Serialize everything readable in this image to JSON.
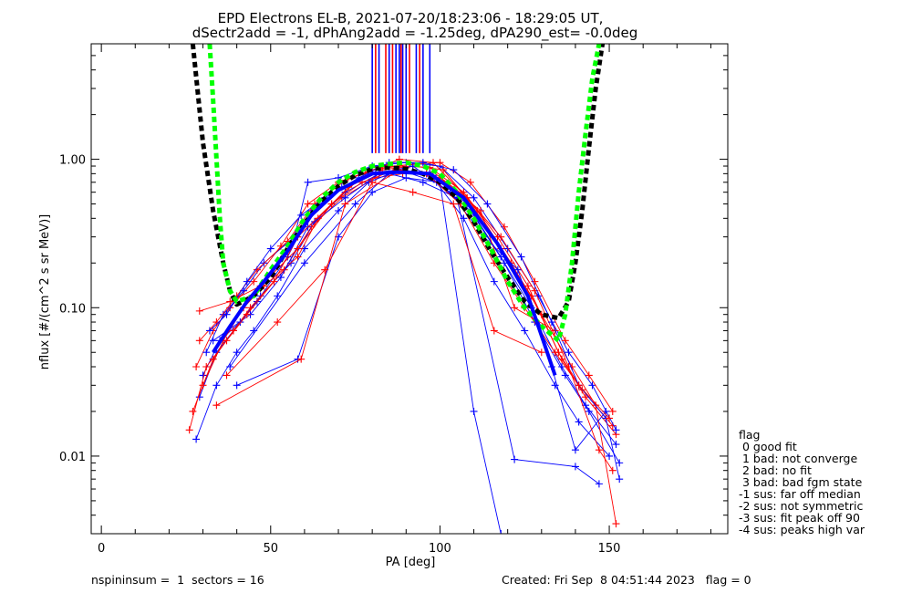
{
  "title_line1": "EPD Electrons EL-B, 2021-07-20/18:23:06 - 18:29:05 UT,",
  "title_line2": "dSectr2add = -1, dPhAng2add = -1.25deg, dPA290_est=  -0.0deg",
  "footer": {
    "left": "nspininsum =  1  sectors = 16",
    "right": "Created: Fri Sep  8 04:51:44 2023   flag = 0"
  },
  "legend": {
    "title": "flag",
    "items": [
      " 0 good fit",
      " 1 bad: not converge",
      " 2 bad: no fit",
      " 3 bad: bad fgm state",
      "-1 sus: far off median",
      "-2 sus: not symmetric",
      "-3 sus: fit peak off 90",
      "-4 sus: peaks high var"
    ]
  },
  "colors": {
    "blue": "#0000ff",
    "red": "#ff0000",
    "black": "#000000",
    "green": "#00ff00"
  },
  "chart_data": {
    "type": "line",
    "xlabel": "PA [deg]",
    "ylabel": "nflux [#/(cm^2 s sr MeV)]",
    "xlim": [
      -3,
      185
    ],
    "ylim": [
      0.003,
      6.0
    ],
    "yscale": "log",
    "xticks": [
      0,
      50,
      100,
      150
    ],
    "xtick_labels": [
      "0",
      "50",
      "100",
      "150"
    ],
    "yticks": [
      0.01,
      0.1,
      1.0
    ],
    "ytick_labels": [
      "0.01",
      "0.10",
      "1.00"
    ],
    "series": [
      {
        "color": "blue",
        "x": [
          29,
          34,
          39,
          46,
          55,
          62,
          71,
          81,
          89,
          98,
          108,
          118,
          127,
          136,
          143,
          152
        ],
        "y": [
          0.025,
          0.05,
          0.07,
          0.11,
          0.22,
          0.45,
          0.65,
          0.82,
          0.85,
          0.78,
          0.5,
          0.22,
          0.1,
          0.04,
          0.022,
          0.012
        ]
      },
      {
        "color": "red",
        "x": [
          28,
          33,
          38,
          45,
          53,
          61,
          70,
          80,
          88,
          97,
          107,
          117,
          126,
          135,
          142,
          151
        ],
        "y": [
          0.04,
          0.07,
          0.1,
          0.15,
          0.26,
          0.5,
          0.7,
          0.85,
          0.9,
          0.88,
          0.6,
          0.3,
          0.14,
          0.05,
          0.028,
          0.016
        ]
      },
      {
        "color": "blue",
        "x": [
          30,
          35,
          41,
          47,
          56,
          63,
          72,
          82,
          90,
          99,
          109,
          119,
          128,
          137,
          144,
          153
        ],
        "y": [
          0.035,
          0.06,
          0.08,
          0.12,
          0.2,
          0.38,
          0.6,
          0.8,
          0.82,
          0.7,
          0.45,
          0.2,
          0.08,
          0.035,
          0.02,
          0.009
        ]
      },
      {
        "color": "red",
        "x": [
          27,
          33,
          39,
          44,
          54,
          62,
          71,
          81,
          89,
          98,
          108,
          118,
          127,
          136,
          143,
          152
        ],
        "y": [
          0.02,
          0.045,
          0.07,
          0.1,
          0.18,
          0.35,
          0.55,
          0.75,
          0.8,
          0.82,
          0.55,
          0.25,
          0.12,
          0.045,
          0.025,
          0.014
        ]
      },
      {
        "color": "blue",
        "x": [
          31,
          36,
          42,
          48,
          57,
          61,
          70,
          80,
          90,
          100,
          110,
          120,
          129,
          138,
          145,
          152
        ],
        "y": [
          0.05,
          0.09,
          0.13,
          0.2,
          0.3,
          0.7,
          0.75,
          0.9,
          0.95,
          0.9,
          0.55,
          0.25,
          0.12,
          0.05,
          0.03,
          0.015
        ]
      },
      {
        "color": "red",
        "x": [
          29,
          34,
          40,
          46,
          55,
          63,
          72,
          82,
          91,
          100,
          109,
          119,
          128,
          137,
          144,
          151
        ],
        "y": [
          0.06,
          0.08,
          0.12,
          0.18,
          0.28,
          0.5,
          0.72,
          0.88,
          0.92,
          0.95,
          0.7,
          0.35,
          0.15,
          0.06,
          0.035,
          0.02
        ]
      },
      {
        "color": "blue",
        "x": [
          28,
          34,
          40,
          45,
          52,
          60,
          70,
          79,
          88,
          97,
          107,
          116,
          125,
          134,
          141,
          150
        ],
        "y": [
          0.013,
          0.03,
          0.05,
          0.07,
          0.12,
          0.25,
          0.45,
          0.7,
          0.85,
          0.8,
          0.4,
          0.15,
          0.07,
          0.03,
          0.017,
          0.01
        ]
      },
      {
        "color": "red",
        "x": [
          30,
          36,
          42,
          48,
          58,
          64,
          73,
          83,
          92,
          101,
          111,
          121,
          130,
          139,
          146,
          152
        ],
        "y": [
          0.03,
          0.06,
          0.1,
          0.14,
          0.22,
          0.4,
          0.65,
          0.85,
          0.9,
          0.85,
          0.45,
          0.2,
          0.09,
          0.04,
          0.022,
          0.0035
        ]
      },
      {
        "color": "blue",
        "x": [
          40,
          58,
          70,
          80,
          90,
          100,
          110,
          118
        ],
        "y": [
          0.03,
          0.045,
          0.3,
          0.6,
          0.75,
          0.7,
          0.02,
          0.003
        ]
      },
      {
        "color": "blue",
        "x": [
          38,
          60,
          75,
          85,
          95,
          105,
          122,
          140,
          147
        ],
        "y": [
          0.04,
          0.2,
          0.5,
          0.8,
          0.7,
          0.55,
          0.0095,
          0.0085,
          0.0065
        ]
      },
      {
        "color": "red",
        "x": [
          37,
          52,
          66,
          80,
          92,
          104,
          116,
          130
        ],
        "y": [
          0.035,
          0.08,
          0.18,
          0.7,
          0.6,
          0.5,
          0.07,
          0.05
        ]
      },
      {
        "color": "red",
        "x": [
          34,
          59,
          72,
          88,
          100,
          112,
          122,
          134
        ],
        "y": [
          0.022,
          0.045,
          0.5,
          0.85,
          0.75,
          0.45,
          0.1,
          0.07
        ]
      },
      {
        "color": "blue",
        "x": [
          33,
          44,
          53,
          61,
          72,
          82,
          92,
          103,
          113,
          123,
          133,
          140,
          149
        ],
        "y": [
          0.06,
          0.09,
          0.16,
          0.35,
          0.55,
          0.8,
          0.9,
          0.6,
          0.3,
          0.18,
          0.04,
          0.011,
          0.02
        ]
      },
      {
        "color": "red",
        "x": [
          29,
          38,
          47,
          58,
          68,
          78,
          88,
          98,
          108,
          118,
          128,
          138,
          147,
          151
        ],
        "y": [
          0.095,
          0.11,
          0.14,
          0.25,
          0.5,
          0.8,
          1.0,
          0.95,
          0.55,
          0.3,
          0.13,
          0.04,
          0.011,
          0.008
        ]
      },
      {
        "color": "blue",
        "x": [
          32,
          37,
          43,
          50,
          59,
          66,
          76,
          85,
          95,
          104,
          114,
          124,
          133,
          141,
          149,
          153
        ],
        "y": [
          0.07,
          0.09,
          0.15,
          0.25,
          0.42,
          0.55,
          0.75,
          0.95,
          0.95,
          0.85,
          0.5,
          0.22,
          0.08,
          0.03,
          0.018,
          0.007
        ]
      },
      {
        "color": "red",
        "x": [
          26,
          31,
          37,
          43,
          51,
          58,
          68,
          77,
          87,
          96,
          106,
          116,
          125,
          134,
          141,
          150
        ],
        "y": [
          0.015,
          0.04,
          0.06,
          0.09,
          0.15,
          0.3,
          0.5,
          0.7,
          0.85,
          0.8,
          0.5,
          0.2,
          0.1,
          0.05,
          0.03,
          0.018
        ]
      }
    ],
    "fit_lines": [
      {
        "style": "dashed-thick",
        "color": "black",
        "x": [
          27,
          30,
          33,
          36,
          38,
          40,
          45,
          50,
          55,
          60,
          65,
          70,
          75,
          80,
          85,
          90,
          95,
          100,
          105,
          110,
          115,
          120,
          125,
          130,
          135,
          138,
          140,
          142,
          144,
          146,
          148
        ],
        "y": [
          6.0,
          1.3,
          0.45,
          0.2,
          0.13,
          0.105,
          0.12,
          0.16,
          0.25,
          0.37,
          0.52,
          0.66,
          0.78,
          0.86,
          0.88,
          0.86,
          0.8,
          0.7,
          0.55,
          0.38,
          0.24,
          0.16,
          0.11,
          0.09,
          0.085,
          0.11,
          0.2,
          0.45,
          1.2,
          3.0,
          6.0
        ]
      },
      {
        "style": "dashed-thick",
        "color": "green",
        "x": [
          32,
          33,
          34,
          35,
          36,
          38,
          40,
          45,
          50,
          55,
          60,
          65,
          70,
          75,
          80,
          85,
          90,
          95,
          100,
          105,
          110,
          115,
          120,
          125,
          130,
          135,
          137,
          139,
          141,
          143,
          145,
          147
        ],
        "y": [
          6.0,
          2.5,
          1.0,
          0.4,
          0.2,
          0.13,
          0.11,
          0.12,
          0.18,
          0.26,
          0.4,
          0.55,
          0.7,
          0.82,
          0.9,
          0.93,
          0.95,
          0.9,
          0.8,
          0.6,
          0.4,
          0.25,
          0.15,
          0.1,
          0.075,
          0.06,
          0.09,
          0.2,
          0.6,
          1.5,
          3.5,
          6.0
        ]
      },
      {
        "style": "thick",
        "color": "blue",
        "x": [
          33,
          38,
          43,
          48,
          55,
          62,
          70,
          80,
          88,
          97,
          107,
          117,
          126,
          134
        ],
        "y": [
          0.05,
          0.075,
          0.11,
          0.15,
          0.24,
          0.42,
          0.62,
          0.8,
          0.82,
          0.8,
          0.55,
          0.27,
          0.12,
          0.035
        ]
      }
    ],
    "vertical_markers": [
      {
        "color": "blue",
        "x": [
          80,
          82,
          85,
          87,
          88,
          89,
          90,
          93,
          95,
          97
        ]
      },
      {
        "color": "red",
        "x": [
          81,
          84,
          86,
          88.5,
          91,
          94
        ]
      }
    ],
    "vertical_marker_range": [
      1.1,
      6.0
    ]
  }
}
